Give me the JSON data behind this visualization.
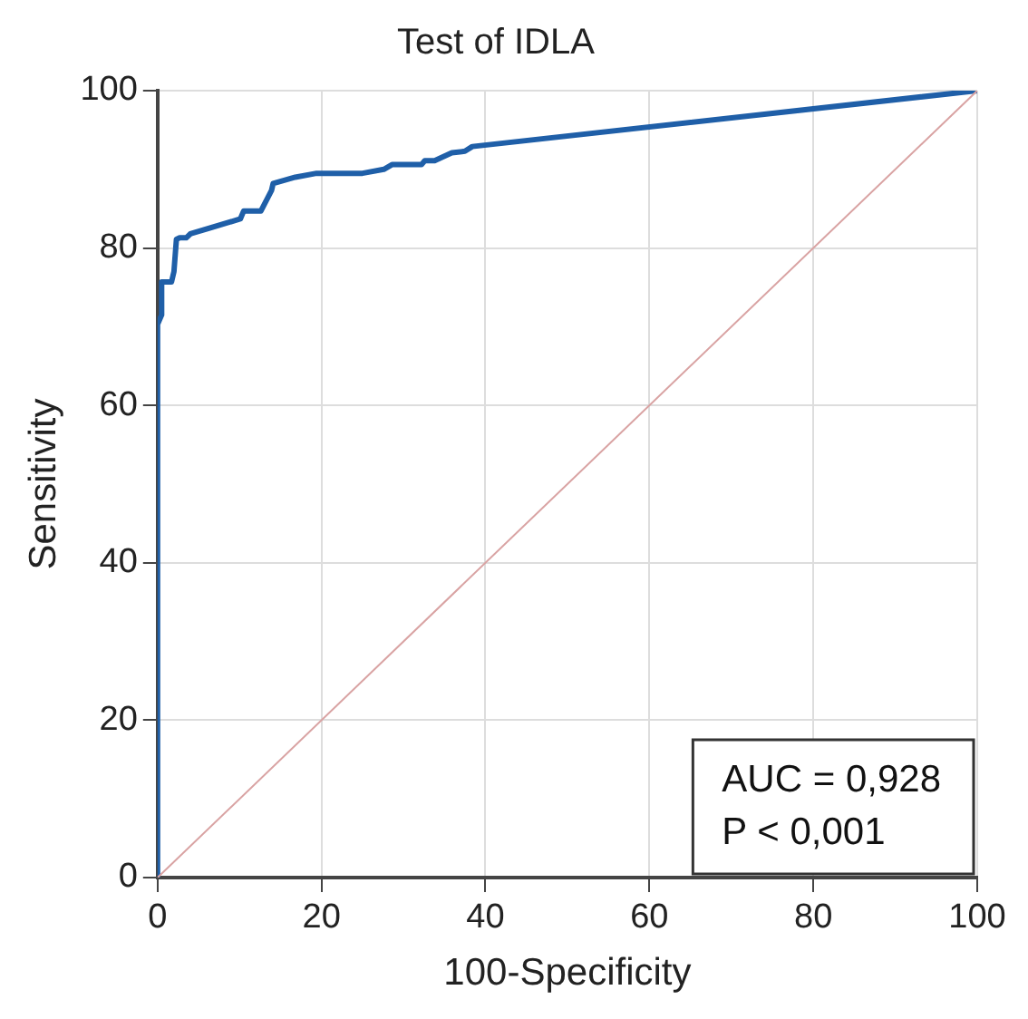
{
  "chart_data": {
    "type": "line",
    "title": "Test of IDLA",
    "xlabel": "100-Specificity",
    "ylabel": "Sensitivity",
    "xlim": [
      0,
      100
    ],
    "ylim": [
      0,
      100
    ],
    "xticks": [
      0,
      20,
      40,
      60,
      80,
      100
    ],
    "yticks": [
      0,
      20,
      40,
      60,
      80,
      100
    ],
    "grid": true,
    "legend": false,
    "marker": "none",
    "series": [
      {
        "color": "#1f5fa8",
        "x": [
          0,
          0,
          0.5,
          0.5,
          1.7,
          2,
          2.3,
          2.7,
          3.5,
          4,
          10.1,
          10.5,
          12.6,
          13.5,
          13.9,
          14.1,
          16.8,
          19.4,
          25,
          27.6,
          28.6,
          32.2,
          32.6,
          33.8,
          35.9,
          37.5,
          38.4,
          100
        ],
        "values": [
          0,
          70.3,
          71.5,
          75.7,
          75.7,
          77,
          81.1,
          81.3,
          81.3,
          81.8,
          83.7,
          84.7,
          84.7,
          86.5,
          87.3,
          88.2,
          89,
          89.5,
          89.5,
          90,
          90.6,
          90.6,
          91.1,
          91.1,
          92.1,
          92.3,
          92.9,
          100
        ]
      },
      {
        "color": "#d9a3a3",
        "x": [
          0,
          100
        ],
        "values": [
          0,
          100
        ]
      }
    ],
    "annotations": [
      "AUC = 0,928",
      "P < 0,001"
    ]
  }
}
